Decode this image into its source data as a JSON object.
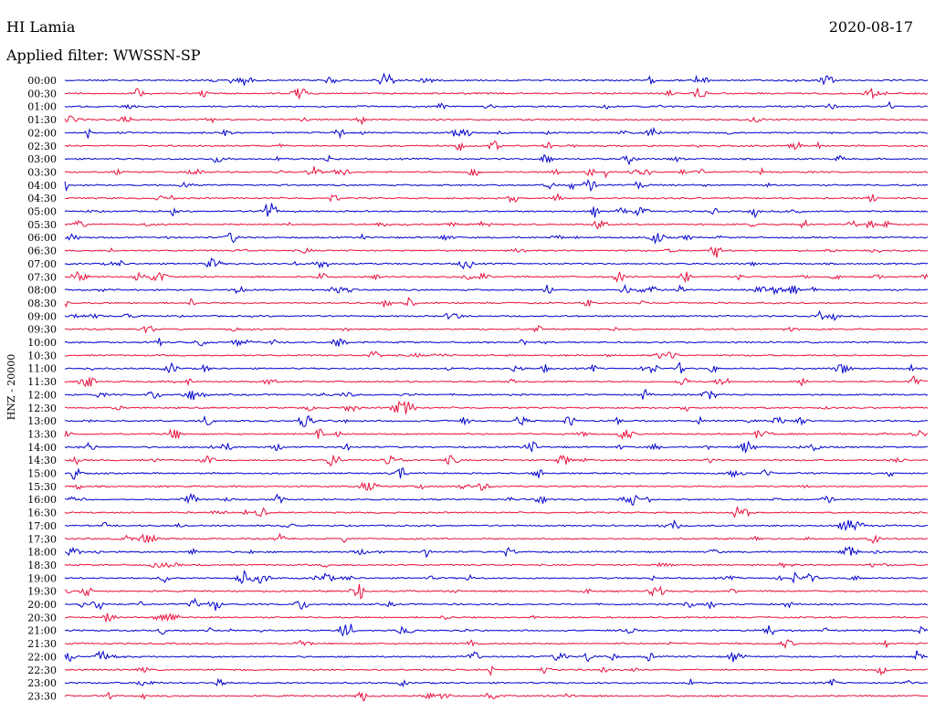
{
  "header": {
    "station": "HI Lamia",
    "date": "2020-08-17",
    "filter": "Applied filter: WWSSN-SP"
  },
  "chart_data": {
    "type": "line",
    "title": "",
    "ylabel": "HNZ - 20000",
    "xlabel": "",
    "colors": [
      "#0000cc",
      "#e8103c"
    ],
    "rows": [
      "00:00",
      "00:30",
      "01:00",
      "01:30",
      "02:00",
      "02:30",
      "03:00",
      "03:30",
      "04:00",
      "04:30",
      "05:00",
      "05:30",
      "06:00",
      "06:30",
      "07:00",
      "07:30",
      "08:00",
      "08:30",
      "09:00",
      "09:30",
      "10:00",
      "10:30",
      "11:00",
      "11:30",
      "12:00",
      "12:30",
      "13:00",
      "13:30",
      "14:00",
      "14:30",
      "15:00",
      "15:30",
      "16:00",
      "16:30",
      "17:00",
      "17:30",
      "18:00",
      "18:30",
      "19:00",
      "19:30",
      "20:00",
      "20:30",
      "21:00",
      "21:30",
      "22:00",
      "22:30",
      "23:00",
      "23:30"
    ]
  }
}
